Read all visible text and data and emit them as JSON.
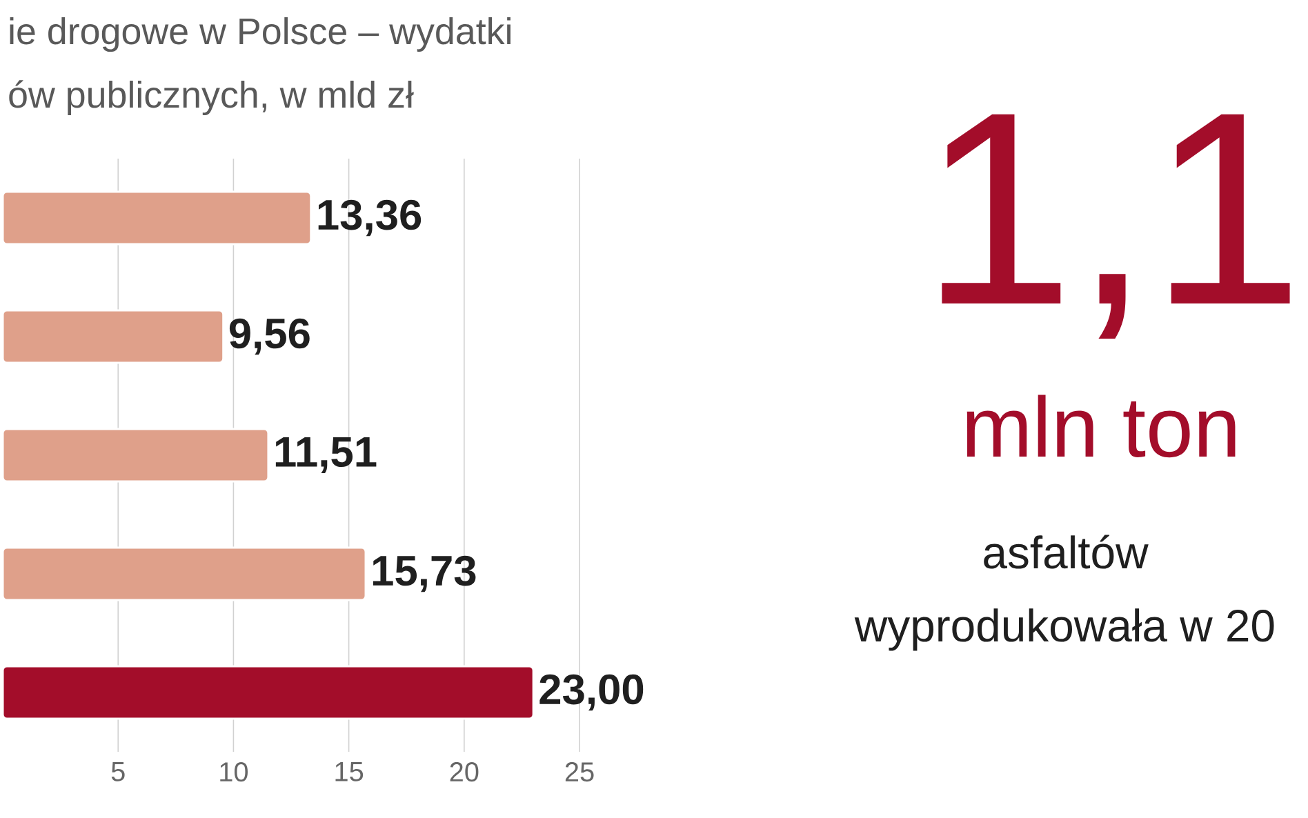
{
  "chart_data": [
    {
      "type": "bar",
      "orientation": "horizontal",
      "title": "ie drogowe w Polsce – wydatki",
      "subtitle": "ów publicznych, w mld zł",
      "categories": [
        null,
        null,
        null,
        null,
        null
      ],
      "values": [
        13.36,
        9.56,
        11.51,
        15.73,
        23.0
      ],
      "colors": [
        "#dfa08a",
        "#dfa08a",
        "#dfa08a",
        "#dfa08a",
        "#a30d2a"
      ],
      "value_labels": [
        "13,36",
        "9,56",
        "11,51",
        "15,73",
        "23,00"
      ],
      "xlim": [
        0,
        25
      ],
      "xticks": [
        5,
        10,
        15,
        20,
        25
      ],
      "grid": "x"
    },
    {
      "type": "other",
      "title": "1,1",
      "subtitle": "mln ton",
      "color": "#a30d2a",
      "annotations": [
        "asfaltów",
        "wyprodukowała w 20"
      ]
    }
  ]
}
